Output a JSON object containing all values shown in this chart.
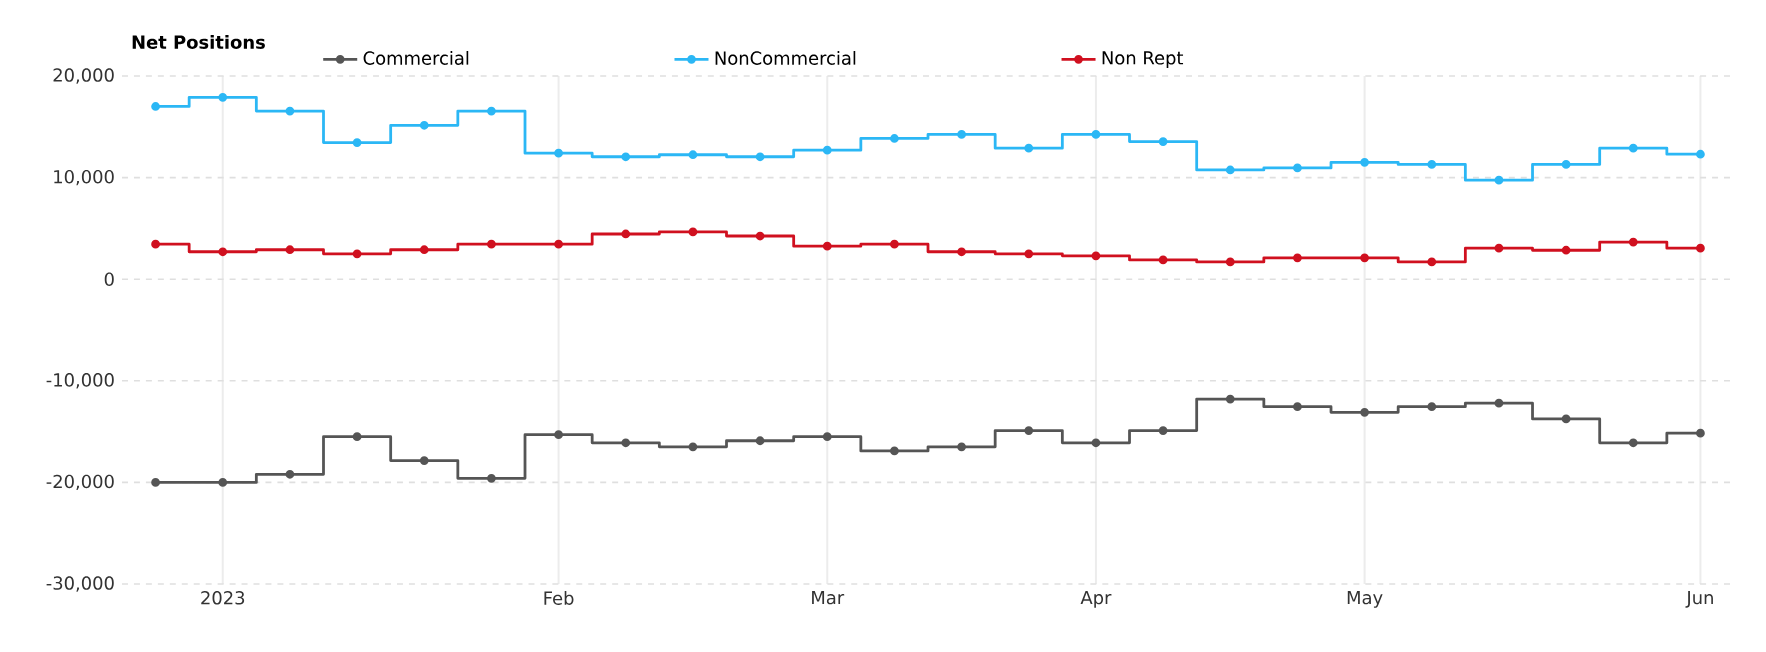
{
  "chart_data": {
    "type": "step",
    "legend_title": "Net Positions",
    "categories": [
      null,
      "2023",
      null,
      null,
      null,
      null,
      "Feb",
      null,
      null,
      null,
      "Mar",
      null,
      null,
      null,
      "Apr",
      null,
      null,
      null,
      "May",
      null,
      null,
      null,
      null,
      "Jun"
    ],
    "series": [
      {
        "name": "Commercial",
        "color": "#555555",
        "values": [
          -20000,
          -20000,
          -19200,
          -15500,
          -17850,
          -19600,
          -15300,
          -16100,
          -16500,
          -15900,
          -15500,
          -16900,
          -16500,
          -14900,
          -16100,
          -14900,
          -11800,
          -12550,
          -13100,
          -12550,
          -12200,
          -13750,
          -16100,
          -15150
        ]
      },
      {
        "name": "NonCommercial",
        "color": "#2bb7f5",
        "values": [
          17000,
          17900,
          16550,
          13450,
          15150,
          16550,
          12400,
          12050,
          12250,
          12050,
          12700,
          13850,
          14250,
          12900,
          14250,
          13550,
          10750,
          10950,
          11500,
          11300,
          9750,
          11300,
          12900,
          12300
        ]
      },
      {
        "name": "Non Rept",
        "color": "#d0101f",
        "values": [
          3450,
          2700,
          2900,
          2500,
          2900,
          3450,
          3450,
          4450,
          4650,
          4250,
          3250,
          3450,
          2700,
          2500,
          2300,
          1900,
          1700,
          2100,
          2100,
          1700,
          3050,
          2850,
          3650,
          3050
        ]
      }
    ],
    "ylim": [
      -30000,
      20000
    ],
    "yticks": [
      {
        "value": -30000,
        "label": "-30,000"
      },
      {
        "value": -20000,
        "label": "-20,000"
      },
      {
        "value": -10000,
        "label": "-10,000"
      },
      0,
      {
        "value": 10000,
        "label": "10,000"
      },
      {
        "value": 20000,
        "label": "20,000"
      }
    ],
    "grid": true,
    "legend": "top",
    "marker": "circle",
    "line_style": "solid"
  }
}
